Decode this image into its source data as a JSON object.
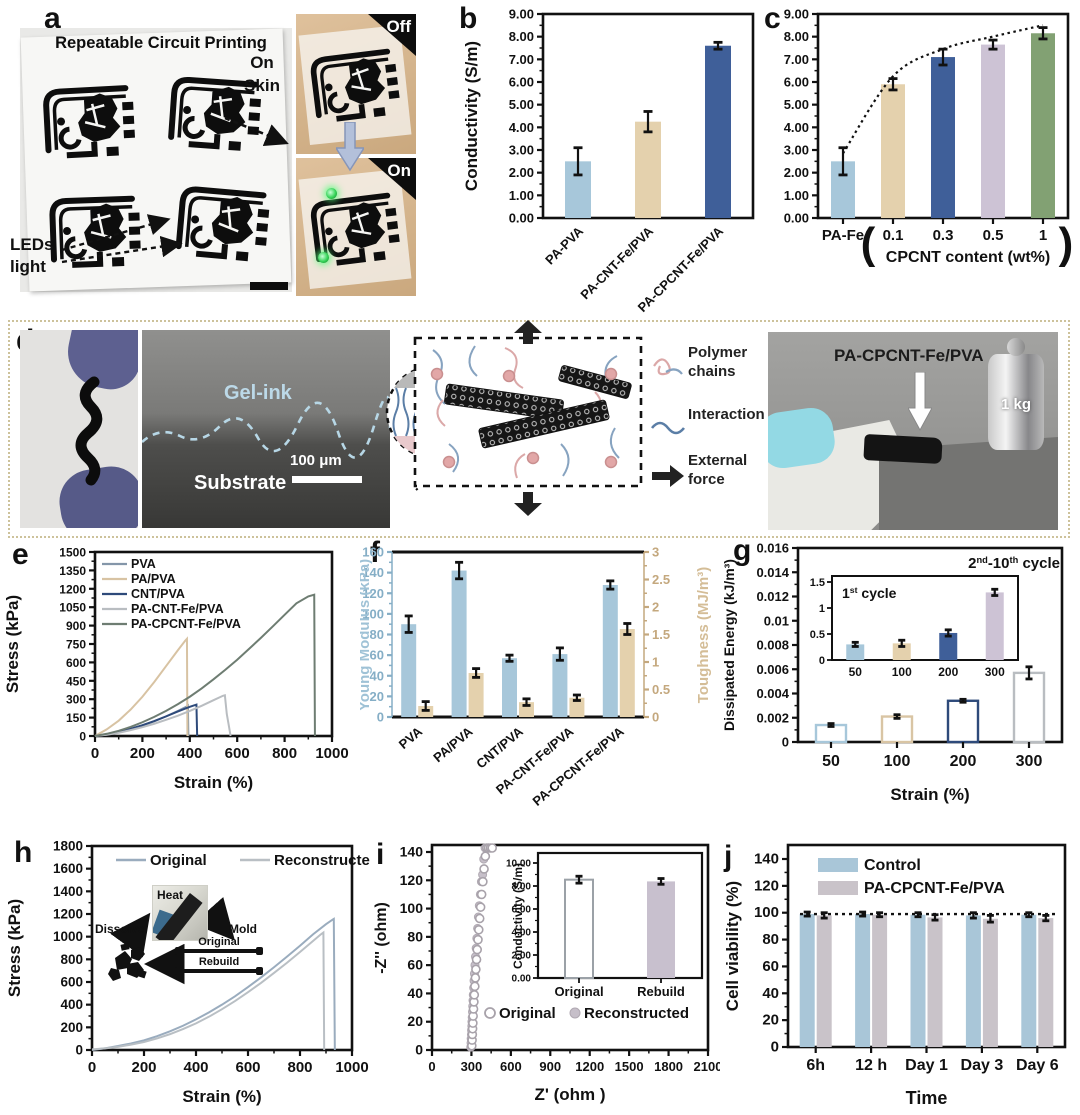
{
  "letters": {
    "a": "a",
    "b": "b",
    "c": "c",
    "d": "d",
    "e": "e",
    "f": "f",
    "g": "g",
    "h": "h",
    "i": "i",
    "j": "j"
  },
  "panel_a": {
    "title": "Repeatable Circuit Printing",
    "on": "On",
    "skin": "Skin",
    "leds": "LEDs",
    "light": "light",
    "off_badge": "Off",
    "on_badge": "On"
  },
  "panel_d": {
    "gel_ink": "Gel-ink",
    "substrate": "Substrate",
    "scale": "100 μm",
    "polymer_1": "Polymer",
    "polymer_2": "chains",
    "interaction": "Interaction",
    "external_1": "External",
    "external_2": "force",
    "sample": "PA-CPCNT-Fe/PVA",
    "weight": "1 kg"
  },
  "h_inset": {
    "heat": "Heat",
    "dissolve": "Dissolve",
    "mold": "Mold",
    "original": "Original",
    "rebuild": "Rebuild"
  },
  "chart_data": {
    "b": {
      "type": "bar",
      "ylabel": "Conductivity (S/m)",
      "ylim": [
        0,
        9
      ],
      "ystep": 1,
      "ydec": 2,
      "categories": [
        "PA-PVA",
        "PA-CNT-Fe/PVA",
        "PA-CPCNT-Fe/PVA"
      ],
      "values": [
        2.5,
        4.25,
        7.6
      ],
      "errors": [
        0.6,
        0.45,
        0.15
      ],
      "colors": [
        "#a7c7da",
        "#e4d1ad",
        "#3f5f99"
      ]
    },
    "c": {
      "type": "bar",
      "ylabel": "Conductivity (S/m)",
      "xlabel": "CPCNT content (wt%)",
      "bracket_open": "(",
      "bracket_close": ")",
      "ylim": [
        0,
        9
      ],
      "ystep": 1,
      "ydec": 2,
      "categories": [
        "PA-Fe",
        "0.1",
        "0.3",
        "0.5",
        "1"
      ],
      "values": [
        2.5,
        5.9,
        7.1,
        7.65,
        8.15
      ],
      "errors": [
        0.6,
        0.25,
        0.35,
        0.2,
        0.25
      ],
      "colors": [
        "#a7c7da",
        "#e4d1ad",
        "#3f5f99",
        "#cdc3d5",
        "#82a173"
      ],
      "trend": true
    },
    "e": {
      "type": "line",
      "xlabel": "Strain (%)",
      "ylabel": "Stress (kPa)",
      "xlim": [
        0,
        1000
      ],
      "xstep": 200,
      "ylim": [
        0,
        1500
      ],
      "ystep": 150,
      "series": [
        {
          "name": "PVA",
          "color": "#8496a9",
          "points": [
            [
              0,
              0
            ],
            [
              50,
              12
            ],
            [
              100,
              30
            ],
            [
              150,
              55
            ],
            [
              200,
              85
            ],
            [
              250,
              120
            ],
            [
              300,
              160
            ],
            [
              350,
              205
            ],
            [
              385,
              238
            ],
            [
              392,
              248
            ],
            [
              394,
              0
            ]
          ]
        },
        {
          "name": "PA/PVA",
          "color": "#d8c3a3",
          "points": [
            [
              0,
              0
            ],
            [
              50,
              55
            ],
            [
              100,
              125
            ],
            [
              150,
              215
            ],
            [
              200,
              320
            ],
            [
              250,
              440
            ],
            [
              300,
              570
            ],
            [
              350,
              700
            ],
            [
              380,
              775
            ],
            [
              388,
              792
            ],
            [
              390,
              0
            ]
          ]
        },
        {
          "name": "CNT/PVA",
          "color": "#2e4a7a",
          "points": [
            [
              0,
              0
            ],
            [
              50,
              12
            ],
            [
              100,
              32
            ],
            [
              150,
              58
            ],
            [
              200,
              88
            ],
            [
              250,
              122
            ],
            [
              300,
              160
            ],
            [
              350,
              200
            ],
            [
              400,
              238
            ],
            [
              428,
              256
            ],
            [
              431,
              0
            ]
          ]
        },
        {
          "name": "PA-CNT-Fe/PVA",
          "color": "#b9bdc1",
          "points": [
            [
              0,
              0
            ],
            [
              50,
              10
            ],
            [
              100,
              26
            ],
            [
              150,
              48
            ],
            [
              200,
              72
            ],
            [
              250,
              100
            ],
            [
              300,
              132
            ],
            [
              350,
              166
            ],
            [
              400,
              204
            ],
            [
              450,
              246
            ],
            [
              500,
              292
            ],
            [
              540,
              328
            ],
            [
              548,
              332
            ],
            [
              556,
              180
            ],
            [
              566,
              70
            ],
            [
              572,
              0
            ]
          ]
        },
        {
          "name": "PA-CPCNT-Fe/PVA",
          "color": "#6e7d72",
          "points": [
            [
              0,
              0
            ],
            [
              50,
              18
            ],
            [
              100,
              42
            ],
            [
              150,
              74
            ],
            [
              200,
              112
            ],
            [
              250,
              156
            ],
            [
              300,
              205
            ],
            [
              350,
              260
            ],
            [
              400,
              320
            ],
            [
              450,
              388
            ],
            [
              500,
              462
            ],
            [
              550,
              540
            ],
            [
              600,
              622
            ],
            [
              650,
              710
            ],
            [
              700,
              800
            ],
            [
              750,
              893
            ],
            [
              800,
              988
            ],
            [
              850,
              1082
            ],
            [
              900,
              1138
            ],
            [
              925,
              1152
            ],
            [
              928,
              0
            ]
          ]
        }
      ]
    },
    "f": {
      "type": "bar-dual",
      "categories": [
        "PVA",
        "PA/PVA",
        "CNT/PVA",
        "PA-CNT-Fe/PVA",
        "PA-CPCNT-Fe/PVA"
      ],
      "left": {
        "label": "Young Modulus (kPa)",
        "color": "#9fc2d6",
        "tick_color": "#85aec6",
        "lim": [
          0,
          160
        ],
        "step": 20,
        "bar_color": "#a7c7da",
        "values": [
          90,
          142,
          57,
          61,
          128
        ],
        "errors": [
          8,
          8,
          3,
          6,
          4
        ]
      },
      "right": {
        "label": "Toughness (MJ/m³)",
        "color": "#d4bd97",
        "tick_color": "#c4a87e",
        "lim": [
          0,
          3
        ],
        "step": 0.5,
        "bar_color": "#e4d1ad",
        "values": [
          0.2,
          0.8,
          0.27,
          0.35,
          1.6
        ],
        "errors": [
          0.08,
          0.08,
          0.06,
          0.05,
          0.1
        ]
      }
    },
    "g": {
      "type": "bar",
      "ylabel": "Dissipated Energy (kJ/m³)",
      "xlabel": "Strain (%)",
      "ylim": [
        0,
        0.016
      ],
      "ystep": 0.002,
      "categories": [
        "50",
        "100",
        "200",
        "300"
      ],
      "values": [
        0.0014,
        0.0021,
        0.0034,
        0.0057
      ],
      "errors": [
        0.00012,
        0.00015,
        0.00012,
        0.0005
      ],
      "bar_fill": "#ffffff",
      "outline_colors": [
        "#a7c7da",
        "#d9c5a4",
        "#2e4a7a",
        "#b9bdc1"
      ],
      "annotation_parts": [
        {
          "t": "2"
        },
        {
          "t": "nd",
          "sup": true
        },
        {
          "t": "-10"
        },
        {
          "t": "th",
          "sup": true
        },
        {
          "t": " cycle"
        }
      ],
      "inset": {
        "title_parts": [
          {
            "t": "1"
          },
          {
            "t": "st",
            "sup": true
          },
          {
            "t": " cycle"
          }
        ],
        "ylim": [
          0,
          1.5
        ],
        "yticks": [
          0,
          0.5,
          1,
          1.5
        ],
        "categories": [
          "50",
          "100",
          "200",
          "300"
        ],
        "values": [
          0.3,
          0.32,
          0.52,
          1.3
        ],
        "errors": [
          0.04,
          0.06,
          0.06,
          0.06
        ],
        "colors": [
          "#a7c7da",
          "#e4d1ad",
          "#3f5f99",
          "#cdc3d5"
        ]
      }
    },
    "h": {
      "type": "line",
      "xlabel": "Strain (%)",
      "ylabel": "Stress (kPa)",
      "xlim": [
        0,
        1000
      ],
      "xstep": 200,
      "ylim": [
        0,
        1800
      ],
      "ystep": 200,
      "series": [
        {
          "name": "Original",
          "color": "#9aacbe",
          "points": [
            [
              0,
              0
            ],
            [
              50,
              15
            ],
            [
              100,
              35
            ],
            [
              150,
              58
            ],
            [
              200,
              85
            ],
            [
              250,
              122
            ],
            [
              300,
              165
            ],
            [
              350,
              214
            ],
            [
              400,
              270
            ],
            [
              450,
              332
            ],
            [
              500,
              400
            ],
            [
              550,
              474
            ],
            [
              600,
              555
            ],
            [
              650,
              640
            ],
            [
              700,
              730
            ],
            [
              750,
              824
            ],
            [
              800,
              920
            ],
            [
              850,
              1020
            ],
            [
              900,
              1110
            ],
            [
              925,
              1150
            ],
            [
              930,
              1157
            ],
            [
              934,
              0
            ]
          ]
        },
        {
          "name": "Reconstructed",
          "color": "#b9bfc4",
          "points": [
            [
              0,
              5
            ],
            [
              50,
              14
            ],
            [
              100,
              28
            ],
            [
              150,
              47
            ],
            [
              200,
              70
            ],
            [
              250,
              102
            ],
            [
              300,
              140
            ],
            [
              350,
              185
            ],
            [
              400,
              235
            ],
            [
              450,
              294
            ],
            [
              500,
              360
            ],
            [
              550,
              432
            ],
            [
              600,
              510
            ],
            [
              650,
              592
            ],
            [
              700,
              680
            ],
            [
              750,
              770
            ],
            [
              800,
              865
            ],
            [
              850,
              962
            ],
            [
              880,
              1020
            ],
            [
              890,
              1036
            ],
            [
              893,
              0
            ]
          ]
        }
      ]
    },
    "i": {
      "type": "scatter",
      "xlabel": "Z' (ohm )",
      "ylabel": "-Z'' (ohm)",
      "xlim": [
        0,
        2100
      ],
      "xstep": 300,
      "ylim": [
        0,
        140
      ],
      "ystep": 20,
      "series": [
        {
          "name": "Original",
          "style": "open",
          "color": "#a8a2aa",
          "points": [
            [
              303,
              3
            ],
            [
              305,
              7
            ],
            [
              307,
              11
            ],
            [
              309,
              15
            ],
            [
              311,
              19
            ],
            [
              313,
              24
            ],
            [
              316,
              29
            ],
            [
              319,
              34
            ],
            [
              322,
              39
            ],
            [
              326,
              45
            ],
            [
              330,
              51
            ],
            [
              334,
              57
            ],
            [
              339,
              64
            ],
            [
              344,
              71
            ],
            [
              350,
              78
            ],
            [
              356,
              85
            ],
            [
              363,
              93
            ],
            [
              370,
              101
            ],
            [
              378,
              110
            ],
            [
              387,
              119
            ],
            [
              396,
              128
            ],
            [
              406,
              137
            ],
            [
              417,
              146
            ],
            [
              430,
              150
            ],
            [
              445,
              148
            ],
            [
              458,
              152
            ]
          ]
        },
        {
          "name": "Reconstructed",
          "style": "filled",
          "color": "#c6bfc9",
          "points": [
            [
              295,
              2
            ],
            [
              297,
              5
            ],
            [
              298,
              8
            ],
            [
              300,
              11
            ],
            [
              301,
              14
            ],
            [
              303,
              17
            ],
            [
              304,
              20
            ],
            [
              306,
              23
            ],
            [
              308,
              27
            ],
            [
              310,
              31
            ],
            [
              312,
              35
            ],
            [
              314,
              39
            ],
            [
              317,
              44
            ],
            [
              320,
              49
            ],
            [
              323,
              54
            ],
            [
              327,
              60
            ],
            [
              331,
              66
            ],
            [
              336,
              72
            ],
            [
              341,
              79
            ],
            [
              347,
              86
            ],
            [
              353,
              94
            ],
            [
              360,
              102
            ],
            [
              368,
              110
            ],
            [
              376,
              119
            ],
            [
              385,
              124
            ],
            [
              394,
              135
            ],
            [
              404,
              147
            ]
          ]
        }
      ],
      "inset": {
        "ylabel": "Conductivity (S/m)",
        "ylim": [
          0,
          10
        ],
        "ystep": 2,
        "ydec": 2,
        "categories": [
          "Original",
          "Rebuild"
        ],
        "values": [
          8.55,
          8.4
        ],
        "errors": [
          0.3,
          0.25
        ],
        "styles": [
          "open",
          "filled"
        ],
        "fill": "#c8c0ce",
        "outline": "#9ba1a7"
      }
    },
    "j": {
      "type": "bar-group",
      "ylabel": "Cell viability (%)",
      "xlabel": "Time",
      "ylim": [
        0,
        140
      ],
      "ystep": 20,
      "categories": [
        "6h",
        "12 h",
        "Day 1",
        "Day 3",
        "Day 6"
      ],
      "series": [
        {
          "name": "Control",
          "color": "#a9c6d8",
          "values": [
            99,
            99,
            98.5,
            98,
            98.5
          ],
          "errors": [
            1.5,
            1.5,
            1.5,
            2,
            1.5
          ]
        },
        {
          "name": "PA-CPCNT-Fe/PVA",
          "color": "#c9c3c9",
          "values": [
            98,
            98.5,
            96.5,
            95.5,
            96
          ],
          "errors": [
            2,
            1.5,
            2,
            2.5,
            2
          ]
        }
      ],
      "ref_line": 99
    }
  }
}
